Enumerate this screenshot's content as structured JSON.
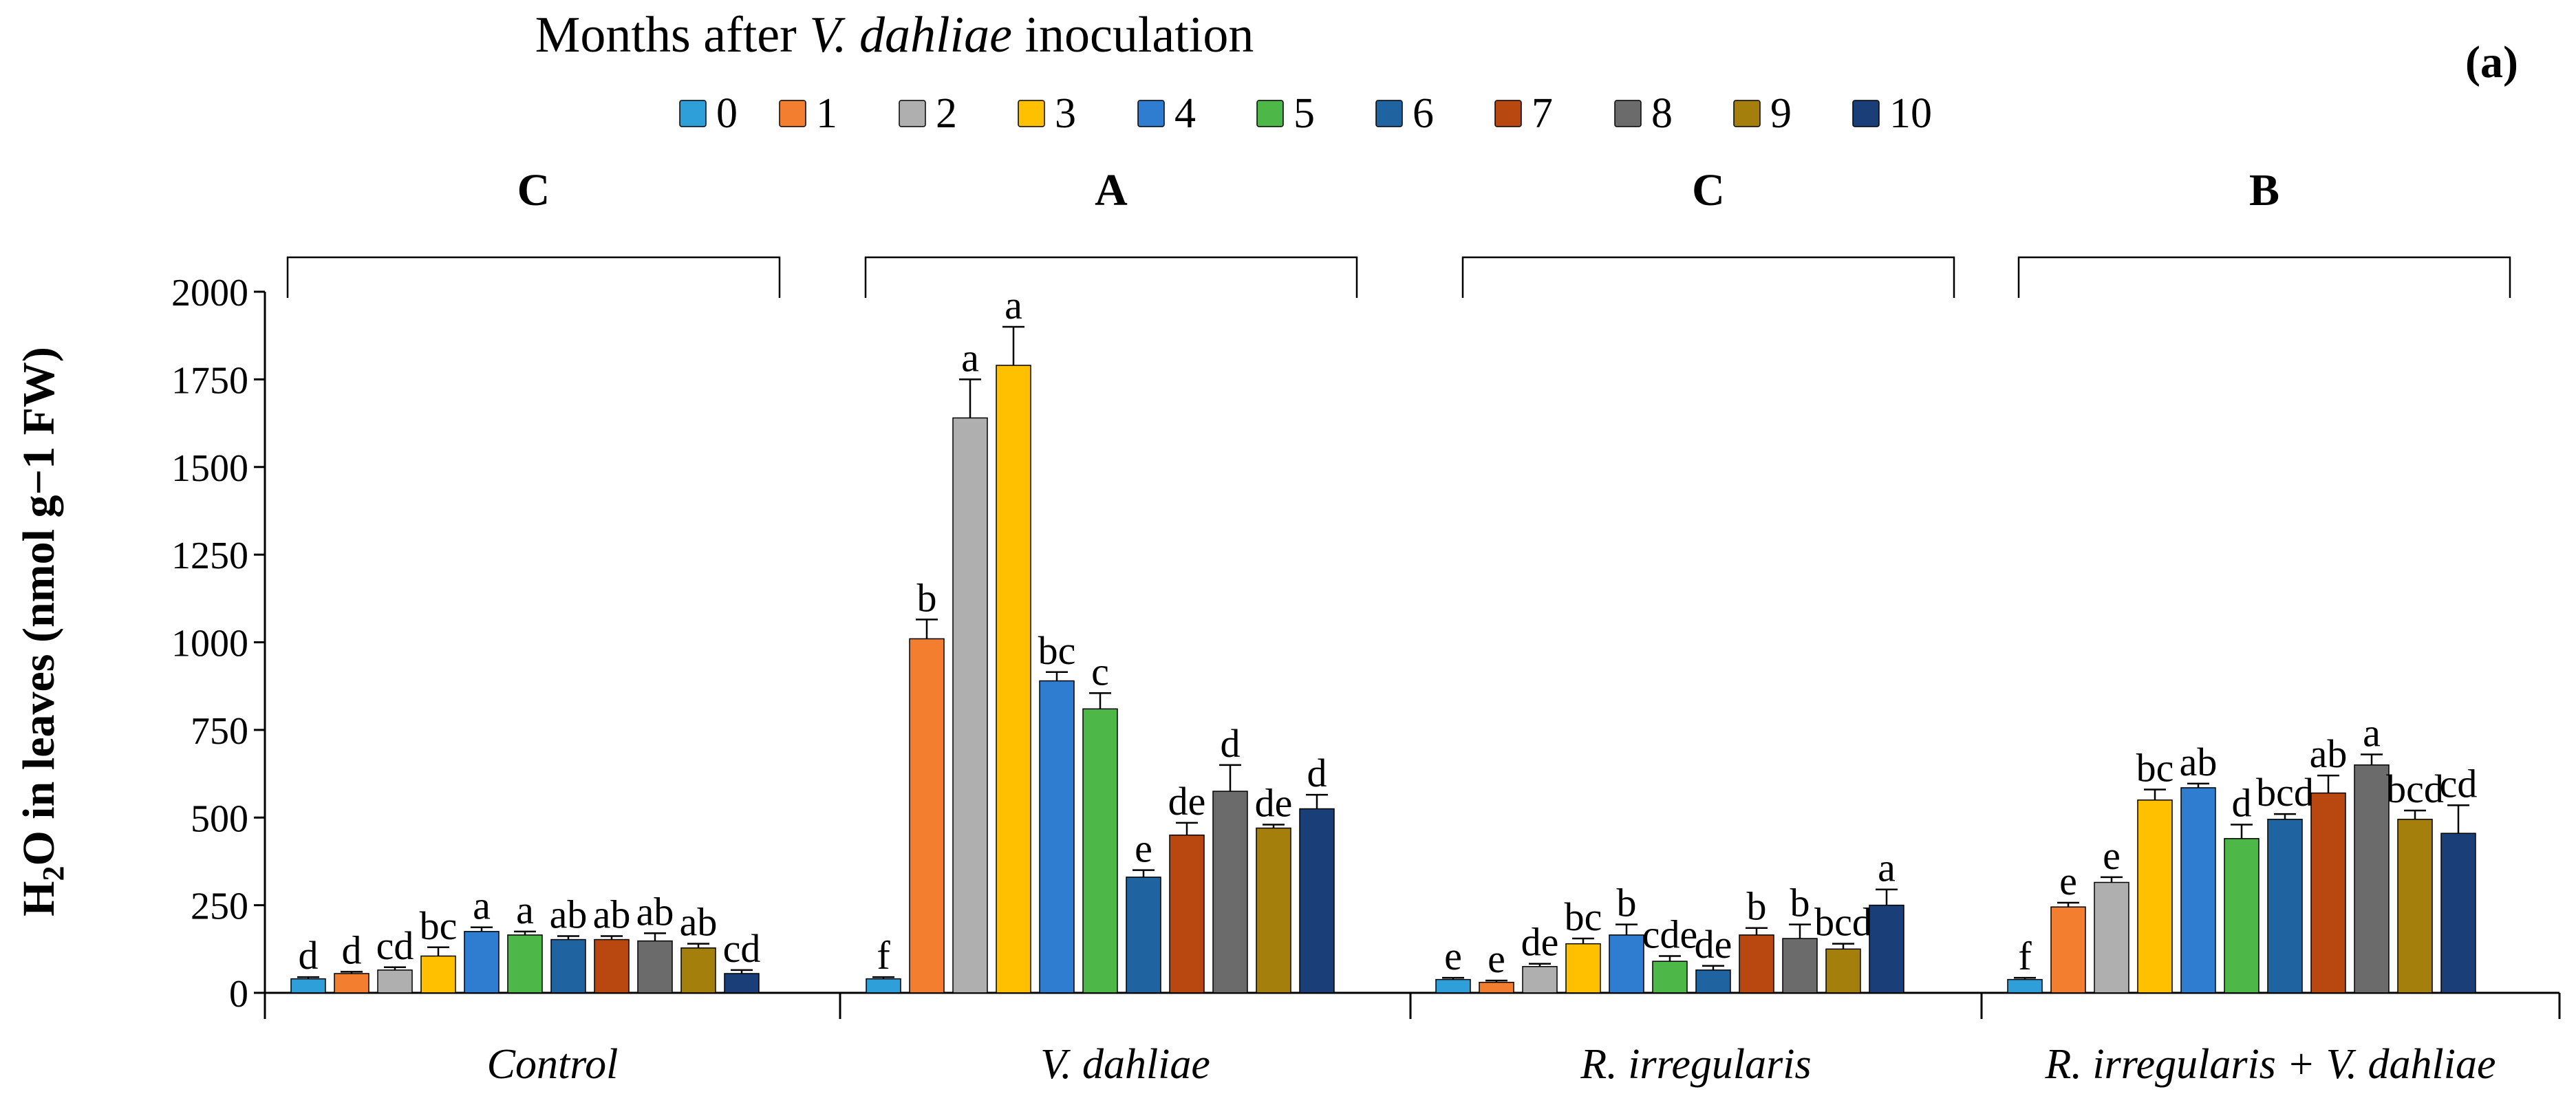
{
  "chart_data": {
    "type": "bar",
    "panel_label": "(a)",
    "legend_title_prefix": "Months after ",
    "legend_title_italic": "V. dahliae",
    "legend_title_suffix": " inoculation",
    "ylabel_main": "H",
    "ylabel_sub": "2",
    "ylabel_o": "O",
    "ylabel_rest": " in leaves (nmol g−1 FW)",
    "ylim": [
      0,
      2000
    ],
    "yticks": [
      0,
      250,
      500,
      750,
      1000,
      1250,
      1500,
      1750,
      2000
    ],
    "series": [
      {
        "name": "0",
        "color": "#2E9FD8"
      },
      {
        "name": "1",
        "color": "#F47E2F"
      },
      {
        "name": "2",
        "color": "#AFAFAF"
      },
      {
        "name": "3",
        "color": "#FFC000"
      },
      {
        "name": "4",
        "color": "#2F7DD1"
      },
      {
        "name": "5",
        "color": "#4DB848"
      },
      {
        "name": "6",
        "color": "#1F63A0"
      },
      {
        "name": "7",
        "color": "#B8480F"
      },
      {
        "name": "8",
        "color": "#6B6B6B"
      },
      {
        "name": "9",
        "color": "#A47F0C"
      },
      {
        "name": "10",
        "color": "#1A3E78"
      }
    ],
    "groups": [
      {
        "name": "Control",
        "group_letter": "C",
        "values": [
          40,
          55,
          65,
          105,
          175,
          165,
          152,
          152,
          148,
          128,
          55
        ],
        "errors": [
          5,
          5,
          8,
          25,
          12,
          10,
          10,
          10,
          22,
          12,
          10
        ],
        "letters": [
          "d",
          "d",
          "cd",
          "bc",
          "a",
          "a",
          "ab",
          "ab",
          "ab",
          "ab",
          "cd"
        ]
      },
      {
        "name": "V. dahliae",
        "group_letter": "A",
        "values": [
          40,
          1010,
          1640,
          1790,
          890,
          810,
          330,
          450,
          575,
          470,
          525
        ],
        "errors": [
          5,
          55,
          110,
          110,
          25,
          45,
          20,
          35,
          75,
          10,
          40
        ],
        "letters": [
          "f",
          "b",
          "a",
          "a",
          "bc",
          "c",
          "e",
          "de",
          "d",
          "de",
          "d"
        ]
      },
      {
        "name": "R. irregularis",
        "group_letter": "C",
        "values": [
          38,
          30,
          75,
          140,
          165,
          90,
          65,
          165,
          155,
          125,
          250
        ],
        "errors": [
          5,
          5,
          8,
          15,
          30,
          15,
          12,
          20,
          40,
          15,
          45
        ],
        "letters": [
          "e",
          "e",
          "de",
          "bc",
          "b",
          "cde",
          "de",
          "b",
          "b",
          "bcd",
          "a"
        ]
      },
      {
        "name": "R. irregularis + V. dahliae",
        "group_letter": "B",
        "values": [
          38,
          245,
          315,
          550,
          585,
          440,
          495,
          570,
          650,
          495,
          455
        ],
        "errors": [
          5,
          12,
          15,
          30,
          12,
          40,
          15,
          50,
          30,
          25,
          80
        ],
        "letters": [
          "f",
          "e",
          "e",
          "bc",
          "ab",
          "d",
          "bcd",
          "ab",
          "a",
          "bcd",
          "cd"
        ]
      }
    ]
  }
}
